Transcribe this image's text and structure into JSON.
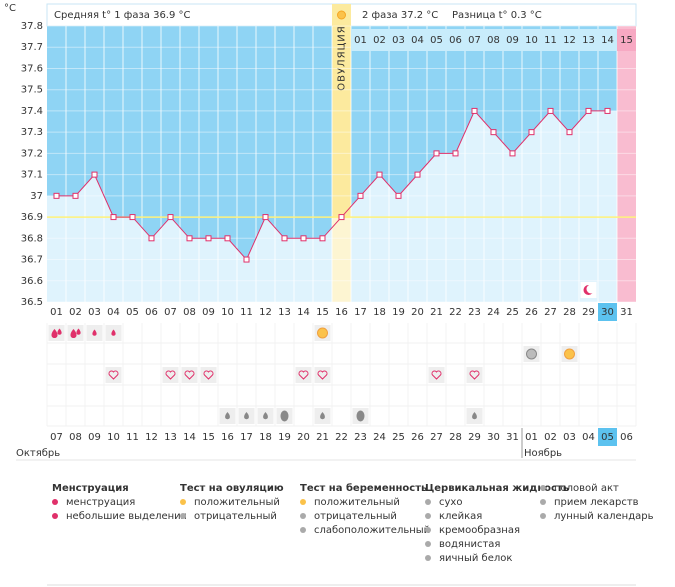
{
  "header": {
    "unit": "°C",
    "phase1": "Средняя t° 1 фаза 36.9 °C",
    "phase2": "2 фаза 37.2 °C",
    "diff": "Разница t° 0.3 °C",
    "ovulation": "ОВУЛЯЦИЯ"
  },
  "chart_data": {
    "type": "line",
    "categories": [
      "01",
      "02",
      "03",
      "04",
      "05",
      "06",
      "07",
      "08",
      "09",
      "10",
      "11",
      "12",
      "13",
      "14",
      "15",
      "16",
      "17",
      "18",
      "19",
      "20",
      "21",
      "22",
      "23",
      "24",
      "25",
      "26",
      "27",
      "28",
      "29",
      "30",
      "31"
    ],
    "values": [
      37,
      37,
      37.1,
      36.9,
      36.9,
      36.8,
      36.9,
      36.8,
      36.8,
      36.8,
      36.7,
      36.9,
      36.8,
      36.8,
      36.8,
      36.9,
      37,
      37.1,
      37,
      37.1,
      37.2,
      37.2,
      37.4,
      37.3,
      37.2,
      37.3,
      37.4,
      37.3,
      37.4,
      37.4,
      null
    ],
    "color": "#e0306a",
    "ylim": [
      36.5,
      37.8
    ],
    "yticks": [
      36.5,
      36.6,
      36.7,
      36.8,
      36.9,
      37,
      37.1,
      37.2,
      37.3,
      37.4,
      37.5,
      37.6,
      37.7,
      37.8
    ],
    "coverline": 36.9,
    "phase2_days": [
      "01",
      "02",
      "03",
      "04",
      "05",
      "06",
      "07",
      "08",
      "09",
      "10",
      "11",
      "12",
      "13",
      "14",
      "15"
    ],
    "dates": [
      "07",
      "08",
      "09",
      "10",
      "11",
      "12",
      "13",
      "14",
      "15",
      "16",
      "17",
      "18",
      "19",
      "20",
      "21",
      "22",
      "23",
      "24",
      "25",
      "26",
      "27",
      "28",
      "29",
      "30",
      "31",
      "01",
      "02",
      "03",
      "04",
      "05",
      "06"
    ],
    "months": [
      "Октябрь",
      "Ноябрь"
    ]
  },
  "legend": [
    {
      "title": "Менструация",
      "items": [
        "менструация",
        "небольшие выделения"
      ]
    },
    {
      "title": "Тест на овуляцию",
      "items": [
        "положительный",
        "отрицательный"
      ]
    },
    {
      "title": "Тест на беременность",
      "items": [
        "положительный",
        "отрицательный",
        "слабоположительный"
      ]
    },
    {
      "title": "Цервикальная жидкость",
      "items": [
        "сухо",
        "клейкая",
        "кремообразная",
        "водянистая",
        "яичный белок"
      ]
    },
    {
      "title": "",
      "items": [
        "половой акт",
        "прием лекарств",
        "лунный календарь"
      ]
    }
  ]
}
